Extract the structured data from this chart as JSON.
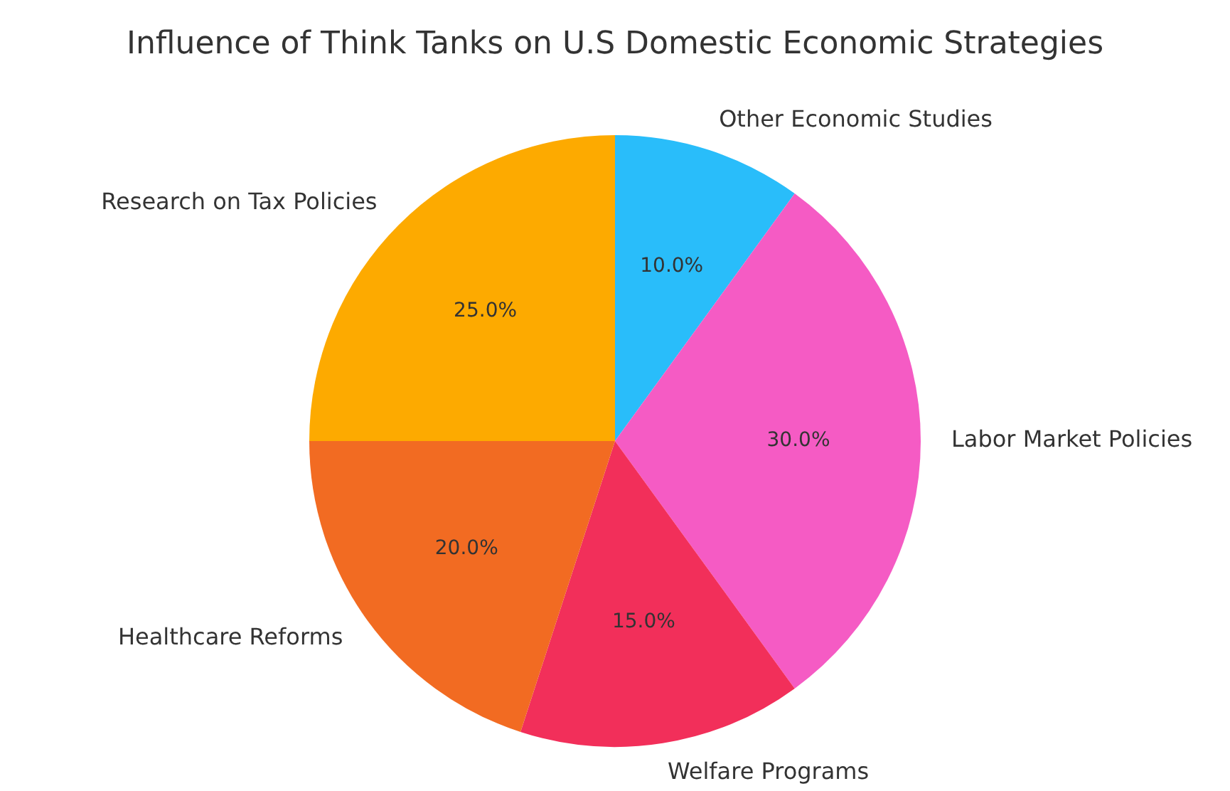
{
  "chart_data": {
    "type": "pie",
    "title": "Influence of Think Tanks on U.S Domestic Economic Strategies",
    "categories": [
      "Other Economic Studies",
      "Labor Market Policies",
      "Welfare Programs",
      "Healthcare Reforms",
      "Research on Tax Policies"
    ],
    "values": [
      10,
      30,
      15,
      20,
      25
    ],
    "colors": [
      "#29bdfa",
      "#f55bc4",
      "#f22f5a",
      "#f26b22",
      "#fdaa00"
    ],
    "value_labels": [
      "10.0%",
      "30.0%",
      "15.0%",
      "20.0%",
      "25.0%"
    ],
    "legend": false
  }
}
